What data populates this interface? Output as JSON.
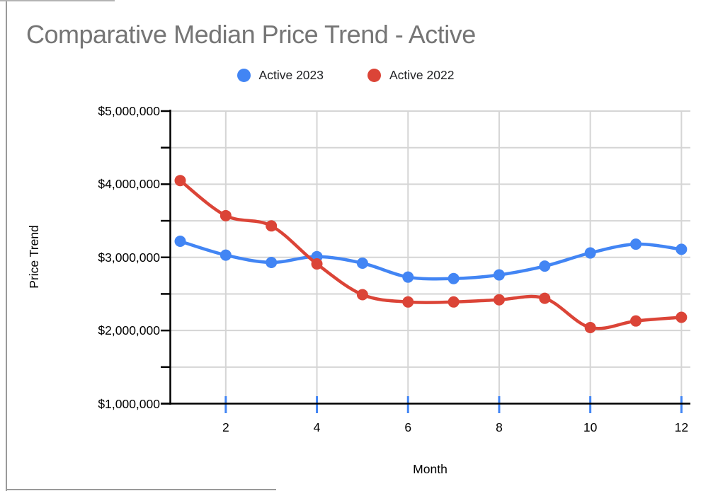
{
  "title": "Comparative Median Price Trend - Active",
  "legend": {
    "items": [
      {
        "label": "Active 2023",
        "color": "#4285f4"
      },
      {
        "label": "Active 2022",
        "color": "#db4437"
      }
    ]
  },
  "axes": {
    "x_label": "Month",
    "y_label": "Price Trend",
    "x_ticks": [
      2,
      4,
      6,
      8,
      10,
      12
    ],
    "y_ticks": [
      {
        "value": 5000000,
        "label": "$5,000,000"
      },
      {
        "value": 4500000,
        "label": ""
      },
      {
        "value": 4000000,
        "label": "$4,000,000"
      },
      {
        "value": 3500000,
        "label": ""
      },
      {
        "value": 3000000,
        "label": "$3,000,000"
      },
      {
        "value": 2500000,
        "label": ""
      },
      {
        "value": 2000000,
        "label": "$2,000,000"
      },
      {
        "value": 1500000,
        "label": ""
      },
      {
        "value": 1000000,
        "label": "$1,000,000"
      }
    ]
  },
  "chart_data": {
    "type": "line",
    "title": "Comparative Median Price Trend - Active",
    "xlabel": "Month",
    "ylabel": "Price Trend",
    "x": [
      1,
      2,
      3,
      4,
      5,
      6,
      7,
      8,
      9,
      10,
      11,
      12
    ],
    "series": [
      {
        "name": "Active 2023",
        "color": "#4285f4",
        "values": [
          3220000,
          3030000,
          2930000,
          3010000,
          2920000,
          2730000,
          2710000,
          2760000,
          2880000,
          3060000,
          3180000,
          3110000
        ]
      },
      {
        "name": "Active 2022",
        "color": "#db4437",
        "values": [
          4050000,
          3570000,
          3430000,
          2910000,
          2490000,
          2390000,
          2390000,
          2420000,
          2440000,
          2040000,
          2130000,
          2180000
        ]
      }
    ],
    "ylim": [
      1000000,
      5000000
    ],
    "y_tick_step": 500000,
    "grid": true,
    "smooth": true,
    "legend_position": "top",
    "marker": "circle"
  },
  "colors": {
    "series_blue": "#4285f4",
    "series_red": "#db4437",
    "gridline": "#d5d5d5",
    "axis": "#000000",
    "title_text": "#757575",
    "sheet_gridline": "#9a9a9a"
  }
}
